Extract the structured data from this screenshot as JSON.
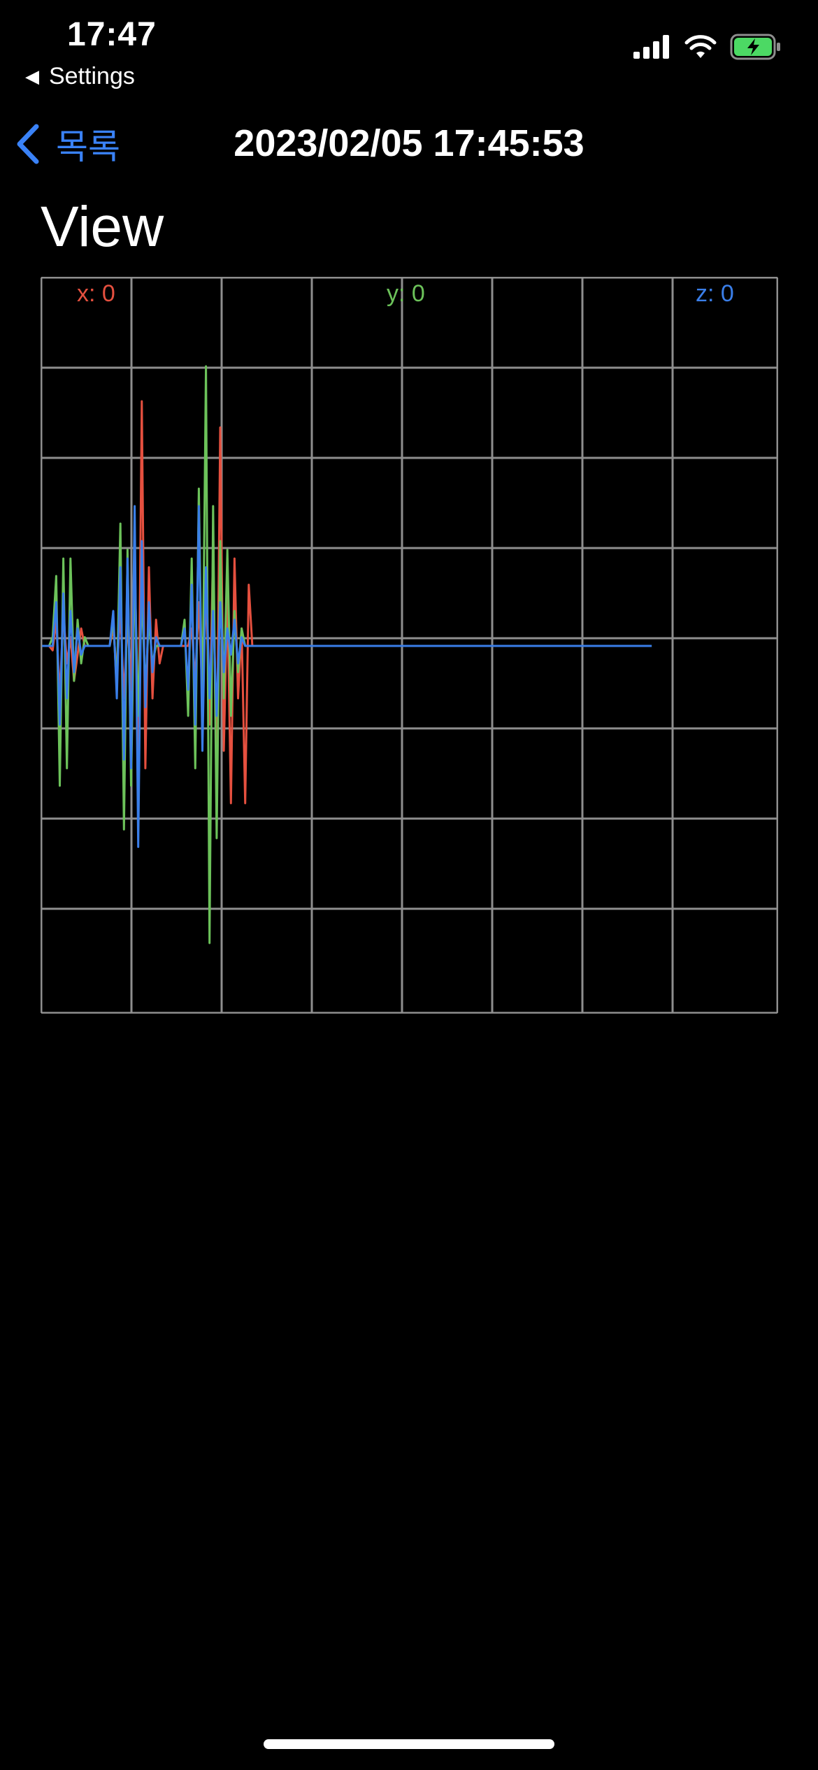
{
  "status_bar": {
    "time": "17:47",
    "back_to_app": "Settings",
    "back_icon": "back-triangle-icon",
    "icons": [
      "cellular-signal-icon",
      "wifi-icon",
      "battery-charging-icon"
    ]
  },
  "nav": {
    "back_label": "목록",
    "back_icon": "chevron-left-icon",
    "title": "2023/02/05 17:45:53"
  },
  "page": {
    "title": "View"
  },
  "colors": {
    "accent": "#3a82f7",
    "x": "#e5503f",
    "y": "#6cc25a",
    "z": "#3a7ee8",
    "grid": "#8e8e8e"
  },
  "chart_data": {
    "type": "line",
    "x_axis": "sample",
    "grid": true,
    "labels": {
      "x": "x: 0",
      "y": "y: 0",
      "z": "z: 0"
    },
    "series": [
      {
        "name": "x",
        "color": "#e5503f",
        "values": [
          0,
          0,
          0,
          -0.05,
          0.3,
          -0.6,
          0.4,
          -0.2,
          0.1,
          -0.4,
          -0.1,
          0.2,
          0,
          0,
          0,
          0,
          0,
          0,
          0,
          0,
          0.2,
          -0.3,
          0.4,
          -0.6,
          0.3,
          -0.5,
          1.2,
          -1.6,
          2.8,
          -1.4,
          0.9,
          -0.6,
          0.3,
          -0.2,
          0,
          0,
          0,
          0,
          0,
          0,
          0,
          0,
          0.2,
          -0.4,
          0.5,
          -0.6,
          0.7,
          -0.9,
          1.1,
          -1.6,
          2.5,
          -1.2,
          0.6,
          -1.8,
          1.0,
          -0.6,
          0.2,
          -1.8,
          0.7,
          0,
          0,
          0,
          0,
          0,
          0,
          0,
          0,
          0,
          0,
          0,
          0,
          0,
          0,
          0,
          0,
          0,
          0,
          0,
          0,
          0,
          0,
          0,
          0,
          0,
          0,
          0,
          0,
          0,
          0,
          0,
          0,
          0,
          0,
          0,
          0,
          0,
          0,
          0,
          0,
          0,
          0,
          0,
          0,
          0,
          0,
          0,
          0,
          0,
          0,
          0,
          0,
          0,
          0,
          0,
          0,
          0,
          0,
          0,
          0,
          0,
          0,
          0,
          0,
          0,
          0,
          0,
          0,
          0,
          0,
          0,
          0,
          0,
          0,
          0,
          0,
          0,
          0,
          0,
          0,
          0,
          0,
          0,
          0,
          0,
          0,
          0,
          0,
          0,
          0,
          0,
          0,
          0,
          0,
          0,
          0,
          0,
          0,
          0,
          0,
          0,
          0,
          0,
          0,
          0,
          0,
          0,
          0,
          0
        ]
      },
      {
        "name": "y",
        "color": "#6cc25a",
        "values": [
          0,
          0,
          0,
          0.1,
          0.8,
          -1.6,
          1.0,
          -1.4,
          1.0,
          -0.4,
          0.3,
          -0.2,
          0.1,
          0,
          0,
          0,
          0,
          0,
          0,
          0,
          0.3,
          -0.5,
          1.4,
          -2.1,
          1.1,
          -1.6,
          0.9,
          -0.8,
          0.6,
          -0.5,
          0.3,
          -0.2,
          0,
          0,
          0,
          0,
          0,
          0,
          0,
          0,
          0.3,
          -0.8,
          1.0,
          -1.4,
          1.8,
          -0.9,
          3.2,
          -3.4,
          1.6,
          -2.2,
          1.2,
          -0.6,
          1.1,
          -0.8,
          0.4,
          -0.3,
          0.2,
          0,
          0,
          0,
          0,
          0,
          0,
          0,
          0,
          0,
          0,
          0,
          0,
          0,
          0,
          0,
          0,
          0,
          0,
          0,
          0,
          0,
          0,
          0,
          0,
          0,
          0,
          0,
          0,
          0,
          0,
          0,
          0,
          0,
          0,
          0,
          0,
          0,
          0,
          0,
          0,
          0,
          0,
          0,
          0,
          0,
          0,
          0,
          0,
          0,
          0,
          0,
          0,
          0,
          0,
          0,
          0,
          0,
          0,
          0,
          0,
          0,
          0,
          0,
          0,
          0,
          0,
          0,
          0,
          0,
          0,
          0,
          0,
          0,
          0,
          0,
          0,
          0,
          0,
          0,
          0,
          0,
          0,
          0,
          0,
          0,
          0,
          0,
          0,
          0,
          0,
          0,
          0,
          0,
          0,
          0,
          0,
          0,
          0,
          0,
          0,
          0,
          0,
          0,
          0,
          0,
          0,
          0,
          0,
          0,
          0,
          0,
          0,
          0,
          0,
          0
        ]
      },
      {
        "name": "z",
        "color": "#3a7ee8",
        "values": [
          0,
          0,
          0,
          0,
          0.5,
          -0.9,
          0.6,
          -0.6,
          0.4,
          -0.3,
          0.2,
          -0.1,
          0,
          0,
          0,
          0,
          0,
          0,
          0,
          0,
          0.4,
          -0.6,
          0.9,
          -1.3,
          1.0,
          -1.4,
          1.6,
          -2.3,
          1.2,
          -0.7,
          0.5,
          -0.3,
          0.1,
          0,
          0,
          0,
          0,
          0,
          0,
          0,
          0.2,
          -0.5,
          0.7,
          -0.9,
          1.6,
          -1.2,
          0.9,
          -0.6,
          0.4,
          -0.8,
          0.5,
          -0.3,
          0.2,
          -0.1,
          0.3,
          -0.2,
          0.1,
          0,
          0,
          0,
          0,
          0,
          0,
          0,
          0,
          0,
          0,
          0,
          0,
          0,
          0,
          0,
          0,
          0,
          0,
          0,
          0,
          0,
          0,
          0,
          0,
          0,
          0,
          0,
          0,
          0,
          0,
          0,
          0,
          0,
          0,
          0,
          0,
          0,
          0,
          0,
          0,
          0,
          0,
          0,
          0,
          0,
          0,
          0,
          0,
          0,
          0,
          0,
          0,
          0,
          0,
          0,
          0,
          0,
          0,
          0,
          0,
          0,
          0,
          0,
          0,
          0,
          0,
          0,
          0,
          0,
          0,
          0,
          0,
          0,
          0,
          0,
          0,
          0,
          0,
          0,
          0,
          0,
          0,
          0,
          0,
          0,
          0,
          0,
          0,
          0,
          0,
          0,
          0,
          0,
          0,
          0,
          0,
          0,
          0,
          0,
          0,
          0,
          0,
          0,
          0,
          0,
          0,
          0,
          0,
          0,
          0,
          0,
          0,
          0,
          0,
          0
        ]
      }
    ],
    "ylim": [
      -4,
      4
    ]
  }
}
